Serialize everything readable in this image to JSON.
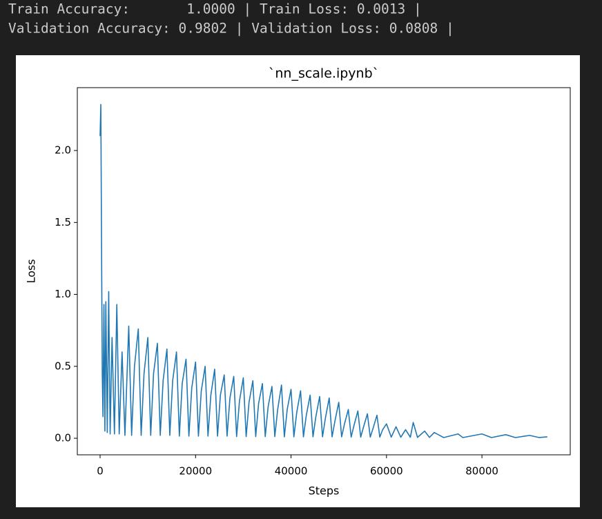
{
  "console": {
    "lines": [
      "Train Accuracy:       1.0000 | Train Loss: 0.0013 |",
      "Validation Accuracy: 0.9802 | Validation Loss: 0.0808 |"
    ]
  },
  "chart_data": {
    "type": "line",
    "title": "`nn_scale.ipynb`",
    "x_label": "Steps",
    "y_label": "Loss",
    "xlim": [
      -4775,
      98500
    ],
    "ylim": [
      -0.115,
      2.437
    ],
    "xticks": [
      0,
      20000,
      40000,
      60000,
      80000
    ],
    "yticks": [
      {
        "value": 0,
        "label": "0.0"
      },
      0.5,
      {
        "value": 1,
        "label": "1.0"
      },
      1.5,
      {
        "value": 2,
        "label": "2.0"
      }
    ],
    "grid": false,
    "series": [
      {
        "name": "loss",
        "color": "#1f77b4",
        "x": [
          0,
          150,
          300,
          450,
          600,
          800,
          1000,
          1200,
          1500,
          1800,
          2100,
          2500,
          3000,
          3500,
          4000,
          4600,
          5200,
          6000,
          6600,
          7200,
          8000,
          8600,
          9200,
          10000,
          10600,
          11200,
          12000,
          12600,
          13200,
          14000,
          14600,
          15200,
          16000,
          16600,
          17200,
          18000,
          18600,
          19200,
          20000,
          20600,
          21200,
          22000,
          22600,
          23200,
          24000,
          24600,
          25200,
          26000,
          26600,
          27200,
          28000,
          28600,
          29200,
          30000,
          30600,
          31200,
          32000,
          32600,
          33200,
          34000,
          34600,
          35200,
          36000,
          36600,
          37200,
          38000,
          38600,
          39200,
          40000,
          40600,
          41200,
          42000,
          42600,
          43200,
          44000,
          44600,
          45200,
          46000,
          46600,
          47200,
          48000,
          48600,
          49200,
          50000,
          50600,
          51200,
          52000,
          52600,
          53200,
          54000,
          54600,
          55200,
          56000,
          56600,
          57200,
          58000,
          58600,
          59200,
          60000,
          61000,
          62000,
          63000,
          64000,
          65000,
          65600,
          66500,
          68000,
          69000,
          70000,
          72000,
          75000,
          76000,
          80000,
          82000,
          85000,
          87000,
          90000,
          92000,
          93700
        ],
        "values": [
          2.1,
          2.32,
          1.35,
          0.45,
          0.15,
          0.93,
          0.05,
          0.95,
          0.04,
          1.02,
          0.03,
          0.7,
          0.03,
          0.93,
          0.03,
          0.6,
          0.02,
          0.78,
          0.02,
          0.5,
          0.76,
          0.02,
          0.45,
          0.7,
          0.02,
          0.45,
          0.66,
          0.02,
          0.4,
          0.62,
          0.02,
          0.4,
          0.6,
          0.015,
          0.38,
          0.55,
          0.015,
          0.35,
          0.53,
          0.015,
          0.33,
          0.5,
          0.015,
          0.3,
          0.48,
          0.015,
          0.3,
          0.44,
          0.015,
          0.28,
          0.43,
          0.012,
          0.26,
          0.42,
          0.012,
          0.25,
          0.4,
          0.012,
          0.24,
          0.38,
          0.012,
          0.22,
          0.36,
          0.012,
          0.2,
          0.37,
          0.01,
          0.2,
          0.34,
          0.01,
          0.18,
          0.33,
          0.01,
          0.16,
          0.3,
          0.01,
          0.15,
          0.29,
          0.01,
          0.14,
          0.28,
          0.01,
          0.12,
          0.25,
          0.01,
          0.1,
          0.2,
          0.008,
          0.09,
          0.19,
          0.008,
          0.08,
          0.17,
          0.008,
          0.07,
          0.16,
          0.008,
          0.06,
          0.1,
          0.008,
          0.08,
          0.007,
          0.06,
          0.007,
          0.11,
          0.006,
          0.05,
          0.006,
          0.04,
          0.005,
          0.03,
          0.005,
          0.03,
          0.005,
          0.025,
          0.005,
          0.02,
          0.005,
          0.01
        ]
      }
    ]
  }
}
